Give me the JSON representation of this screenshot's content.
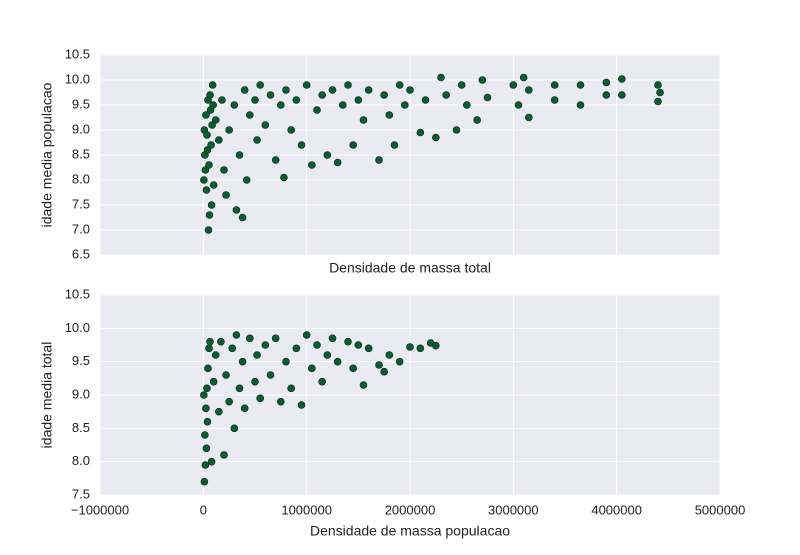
{
  "chart_data": [
    {
      "type": "scatter",
      "xlabel": "Densidade de massa total",
      "ylabel": "idade media populacao",
      "color": "#00622b",
      "grid": true,
      "sharex": true,
      "xlim": [
        -1000000,
        5000000
      ],
      "xticks": [
        {
          "value": -1000000,
          "label": "−1000000"
        },
        0,
        1000000,
        2000000,
        3000000,
        4000000,
        5000000
      ],
      "ylim": [
        6.5,
        10.5
      ],
      "yticks": [
        6.5,
        {
          "value": 7,
          "label": "7.0"
        },
        7.5,
        {
          "value": 8,
          "label": "8.0"
        },
        8.5,
        {
          "value": 9,
          "label": "9.0"
        },
        9.5,
        {
          "value": 10,
          "label": "10.0"
        },
        10.5
      ],
      "x": [
        20000,
        30000,
        50000,
        60000,
        80000,
        100000,
        40000,
        10000,
        70000,
        90000,
        120000,
        150000,
        180000,
        200000,
        220000,
        250000,
        300000,
        320000,
        350000,
        380000,
        400000,
        420000,
        450000,
        500000,
        520000,
        550000,
        600000,
        650000,
        700000,
        750000,
        780000,
        800000,
        850000,
        900000,
        950000,
        1000000,
        1050000,
        1100000,
        1150000,
        1200000,
        1250000,
        1300000,
        1350000,
        1400000,
        1450000,
        1500000,
        1550000,
        1600000,
        1700000,
        1750000,
        1800000,
        1850000,
        1900000,
        1950000,
        2000000,
        2100000,
        2150000,
        2250000,
        2300000,
        2350000,
        2450000,
        2500000,
        2550000,
        2650000,
        2700000,
        2750000,
        3000000,
        3050000,
        3100000,
        3150000,
        3150000,
        3400000,
        3400000,
        3650000,
        3650000,
        3900000,
        3900000,
        4050000,
        4050000,
        4400000,
        4400000,
        4420000,
        5000,
        15000,
        25000,
        35000,
        45000,
        55000,
        65000,
        75000,
        85000,
        95000
      ],
      "values": [
        8.2,
        7.8,
        7.0,
        7.3,
        7.5,
        7.9,
        8.6,
        9.0,
        9.4,
        9.9,
        9.2,
        8.8,
        9.6,
        8.2,
        7.7,
        9.0,
        9.5,
        7.4,
        8.5,
        7.25,
        9.8,
        8.0,
        9.3,
        9.6,
        8.8,
        9.9,
        9.1,
        9.7,
        8.4,
        9.5,
        8.05,
        9.8,
        9.0,
        9.6,
        8.7,
        9.9,
        8.3,
        9.4,
        9.7,
        8.5,
        9.8,
        8.35,
        9.5,
        9.9,
        8.7,
        9.6,
        9.2,
        9.8,
        8.4,
        9.7,
        9.3,
        8.7,
        9.9,
        9.5,
        9.8,
        8.95,
        9.6,
        8.85,
        10.05,
        9.7,
        9.0,
        9.9,
        9.5,
        9.2,
        10.0,
        9.65,
        9.9,
        9.5,
        10.05,
        9.25,
        9.8,
        9.9,
        9.6,
        9.9,
        9.5,
        9.95,
        9.7,
        10.02,
        9.7,
        9.9,
        9.57,
        9.75,
        8.0,
        8.5,
        9.3,
        8.9,
        9.6,
        8.3,
        9.7,
        8.7,
        9.1,
        9.5
      ]
    },
    {
      "type": "scatter",
      "xlabel": "Densidade de massa populacao",
      "ylabel": "idade media total",
      "color": "#00622b",
      "grid": true,
      "sharex": false,
      "xlim": [
        -1000000,
        5000000
      ],
      "xticks": [
        {
          "value": -1000000,
          "label": "−1000000"
        },
        0,
        1000000,
        2000000,
        3000000,
        4000000,
        5000000
      ],
      "ylim": [
        7.5,
        10.5
      ],
      "yticks": [
        7.5,
        {
          "value": 8,
          "label": "8.0"
        },
        8.5,
        {
          "value": 9,
          "label": "9.0"
        },
        9.5,
        {
          "value": 10,
          "label": "10.0"
        },
        10.5
      ],
      "x": [
        10000,
        20000,
        30000,
        15000,
        25000,
        35000,
        45000,
        55000,
        65000,
        5000,
        40000,
        80000,
        100000,
        120000,
        150000,
        170000,
        200000,
        220000,
        250000,
        280000,
        300000,
        320000,
        350000,
        380000,
        400000,
        450000,
        500000,
        520000,
        550000,
        600000,
        650000,
        700000,
        750000,
        800000,
        850000,
        900000,
        950000,
        1000000,
        1050000,
        1100000,
        1150000,
        1200000,
        1250000,
        1300000,
        1400000,
        1450000,
        1500000,
        1550000,
        1600000,
        1700000,
        1750000,
        1800000,
        1900000,
        2000000,
        2100000,
        2200000,
        2250000
      ],
      "values": [
        7.7,
        7.95,
        8.2,
        8.4,
        8.8,
        9.1,
        9.4,
        9.7,
        9.8,
        9.0,
        8.6,
        8.0,
        9.2,
        9.6,
        8.75,
        9.8,
        8.1,
        9.3,
        8.9,
        9.7,
        8.5,
        9.9,
        9.1,
        9.5,
        8.8,
        9.85,
        9.2,
        9.6,
        8.95,
        9.75,
        9.3,
        9.85,
        8.9,
        9.5,
        9.1,
        9.7,
        8.85,
        9.9,
        9.4,
        9.75,
        9.2,
        9.6,
        9.85,
        9.5,
        9.8,
        9.4,
        9.75,
        9.15,
        9.7,
        9.45,
        9.35,
        9.6,
        9.5,
        9.72,
        9.7,
        9.78,
        9.74
      ]
    }
  ]
}
